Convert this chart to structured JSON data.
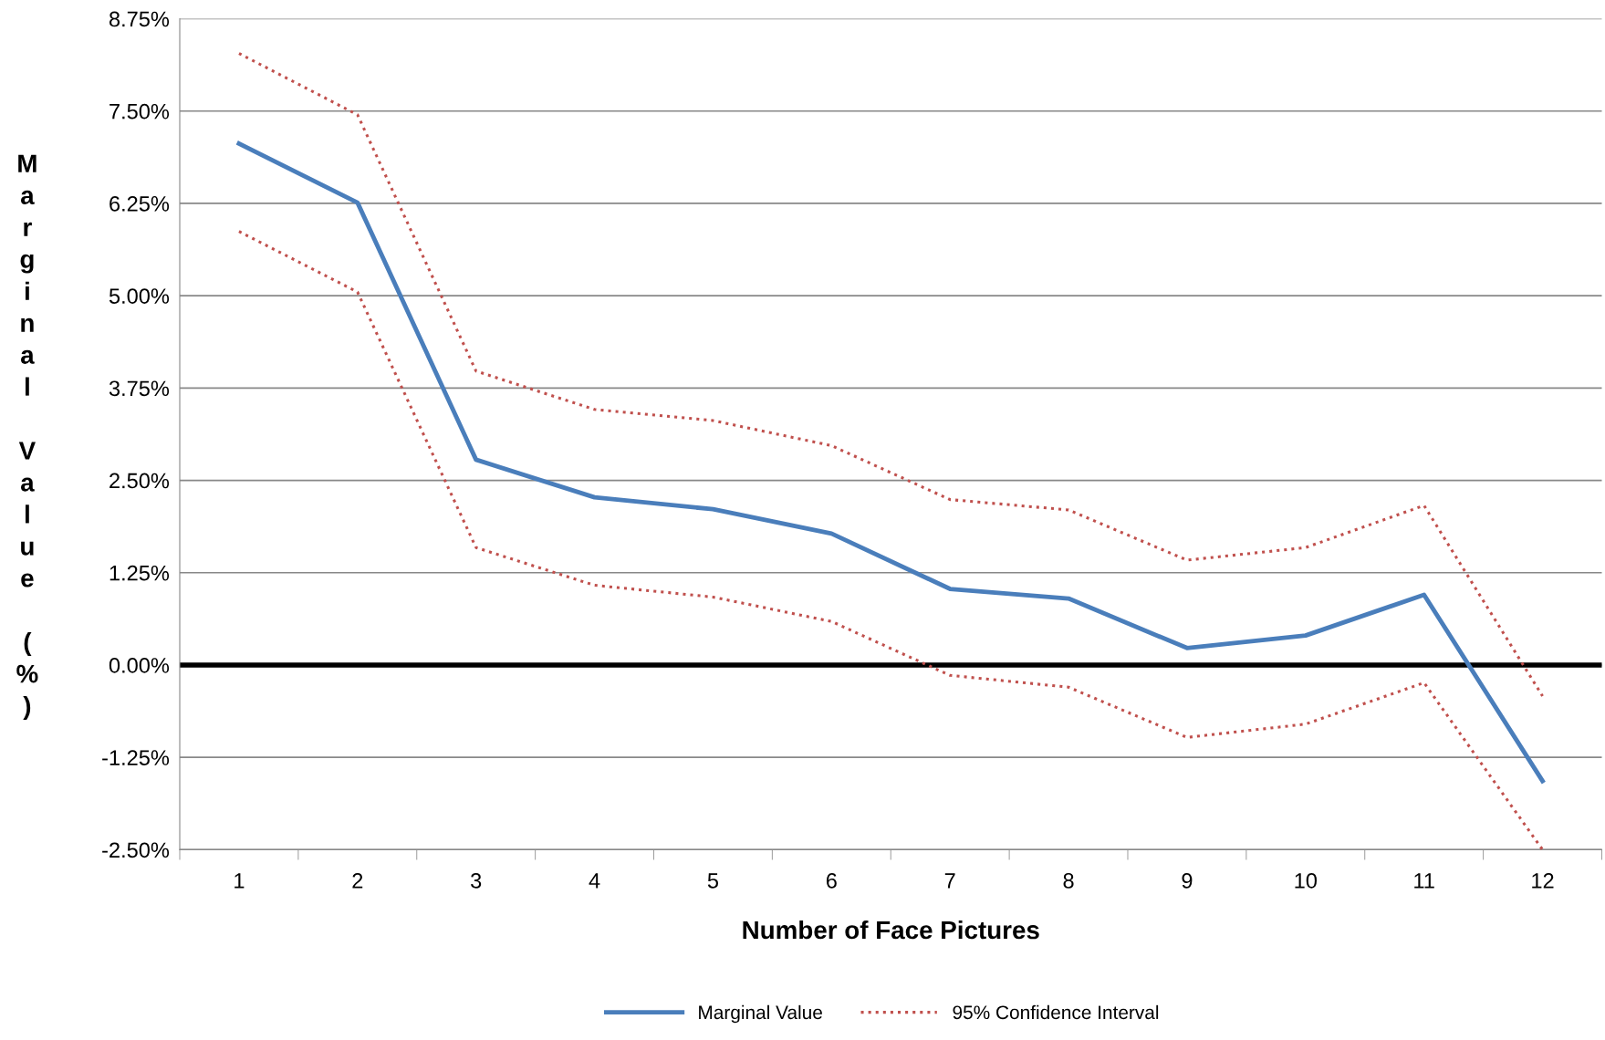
{
  "chart_data": {
    "type": "line",
    "xlabel": "Number of Face Pictures",
    "ylabel": "Marginal Value (%)",
    "categories": [
      "1",
      "2",
      "3",
      "4",
      "5",
      "6",
      "7",
      "8",
      "9",
      "10",
      "11",
      "12"
    ],
    "series": [
      {
        "name": "Marginal Value",
        "color": "#4a7ebb",
        "line_style": "solid",
        "values": [
          7.06,
          6.26,
          2.78,
          2.27,
          2.11,
          1.78,
          1.03,
          0.9,
          0.23,
          0.4,
          0.95,
          -1.57
        ]
      },
      {
        "name": "95% Confidence Interval",
        "color": "#c0504d",
        "line_style": "dotted",
        "values": [
          8.28,
          7.45,
          3.98,
          3.46,
          3.31,
          2.97,
          2.24,
          2.1,
          1.42,
          1.59,
          2.16,
          -0.42
        ]
      },
      {
        "color": "#c0504d",
        "line_style": "dotted",
        "values": [
          5.87,
          5.05,
          1.59,
          1.08,
          0.92,
          0.59,
          -0.14,
          -0.3,
          -0.98,
          -0.8,
          -0.24,
          -2.5
        ]
      }
    ],
    "ylim": [
      -2.5,
      8.75
    ],
    "yticks": [
      {
        "value": -2.5,
        "label": "-2.50%"
      },
      {
        "value": -1.25,
        "label": "-1.25%"
      },
      {
        "value": 0,
        "label": "0.00%"
      },
      {
        "value": 1.25,
        "label": "1.25%"
      },
      {
        "value": 2.5,
        "label": "2.50%"
      },
      {
        "value": 3.75,
        "label": "3.75%"
      },
      {
        "value": 5,
        "label": "5.00%"
      },
      {
        "value": 6.25,
        "label": "6.25%"
      },
      {
        "value": 7.5,
        "label": "7.50%"
      },
      {
        "value": 8.75,
        "label": "8.75%"
      }
    ],
    "ref_lines": [
      {
        "axis": "y",
        "value": 0,
        "color": "#000000",
        "line_style": "solid"
      }
    ],
    "grid": "y",
    "legend": "bottom",
    "marker": "none"
  }
}
